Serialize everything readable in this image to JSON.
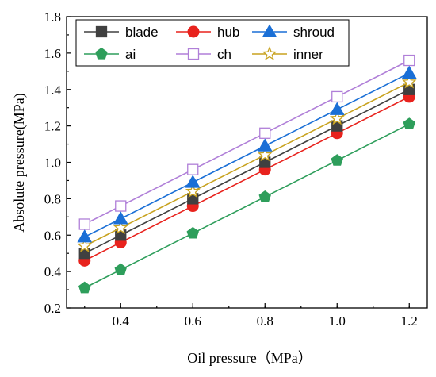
{
  "chart_data": {
    "type": "line",
    "title": "",
    "xlabel": "Oil pressure（MPa）",
    "ylabel": "Absolute pressure(MPa)",
    "x": [
      0.3,
      0.4,
      0.6,
      0.8,
      1.0,
      1.2
    ],
    "xlim": [
      0.25,
      1.25
    ],
    "ylim": [
      0.2,
      1.8
    ],
    "xticks": [
      0.4,
      0.6,
      0.8,
      1.0,
      1.2
    ],
    "xtick_labels": [
      "0.4",
      "0.6",
      "0.8",
      "1.0",
      "1.2"
    ],
    "yticks": [
      0.2,
      0.4,
      0.6,
      0.8,
      1.0,
      1.2,
      1.4,
      1.6,
      1.8
    ],
    "ytick_labels": [
      "0.2",
      "0.4",
      "0.6",
      "0.8",
      "1.0",
      "1.2",
      "1.4",
      "1.6",
      "1.8"
    ],
    "grid": false,
    "legend_position": "top",
    "series": [
      {
        "name": "blade",
        "color": "#404040",
        "marker": "square",
        "values": [
          0.5,
          0.6,
          0.8,
          1.0,
          1.2,
          1.4
        ]
      },
      {
        "name": "hub",
        "color": "#e8221d",
        "marker": "circle",
        "values": [
          0.46,
          0.56,
          0.76,
          0.96,
          1.16,
          1.36
        ]
      },
      {
        "name": "shroud",
        "color": "#1a6fd6",
        "marker": "triangle",
        "values": [
          0.59,
          0.69,
          0.89,
          1.09,
          1.29,
          1.49
        ]
      },
      {
        "name": "ai",
        "color": "#2e9e5b",
        "marker": "pentagon",
        "values": [
          0.31,
          0.41,
          0.61,
          0.81,
          1.01,
          1.21
        ]
      },
      {
        "name": "ch",
        "color": "#b07fd8",
        "marker": "open-square",
        "values": [
          0.66,
          0.76,
          0.96,
          1.16,
          1.36,
          1.56
        ]
      },
      {
        "name": "inner",
        "color": "#c8a21e",
        "marker": "star",
        "values": [
          0.54,
          0.64,
          0.84,
          1.04,
          1.24,
          1.44
        ]
      }
    ]
  }
}
